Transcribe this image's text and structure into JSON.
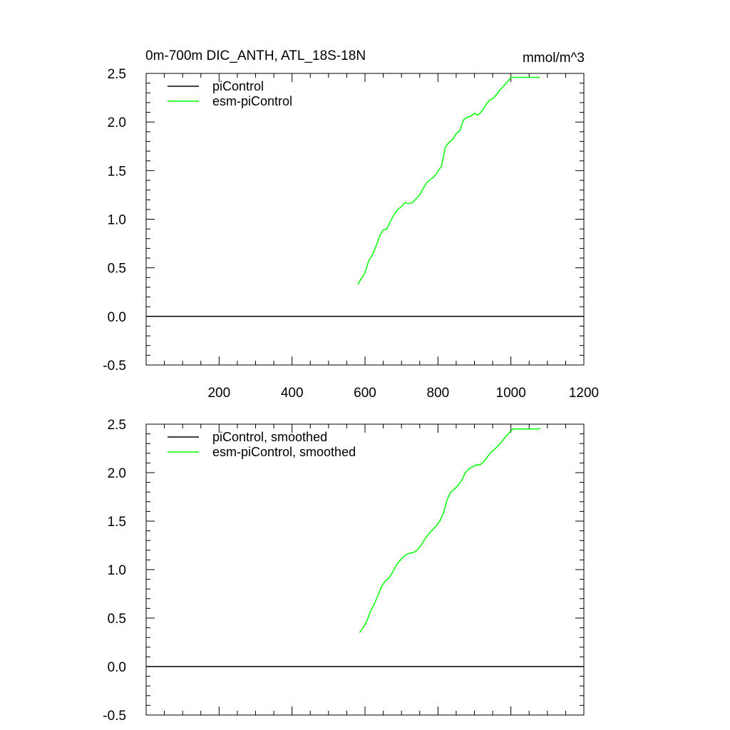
{
  "chart_data": [
    {
      "type": "line",
      "title": "0m-700m DIC_ANTH, ATL_18S-18N",
      "units": "mmol/m^3",
      "xlim": [
        0,
        1200
      ],
      "ylim": [
        -0.5,
        2.5
      ],
      "xticks": [
        200,
        400,
        600,
        800,
        1000,
        1200
      ],
      "xticklabels": [
        "200",
        "400",
        "600",
        "800",
        "1000",
        "1200"
      ],
      "yticks": [
        -0.5,
        0.0,
        0.5,
        1.0,
        1.5,
        2.0,
        2.5
      ],
      "yticklabels": [
        "-0.5",
        "0.0",
        "0.5",
        "1.0",
        "1.5",
        "2.0",
        "2.5"
      ],
      "legend_position": "top-left",
      "series": [
        {
          "name": "piControl",
          "color": "#000000",
          "x": [
            0,
            1200
          ],
          "y": [
            0.0,
            0.0
          ]
        },
        {
          "name": "esm-piControl",
          "color": "#00ff00",
          "x": [
            580,
            590,
            600,
            610,
            620,
            630,
            640,
            650,
            660,
            670,
            680,
            690,
            700,
            710,
            720,
            730,
            740,
            750,
            760,
            770,
            780,
            790,
            800,
            810,
            820,
            830,
            840,
            850,
            860,
            870,
            880,
            890,
            900,
            910,
            920,
            930,
            940,
            950,
            960,
            970,
            980,
            990,
            1000,
            1010,
            1020,
            1030,
            1040,
            1050,
            1060,
            1070,
            1080
          ],
          "y": [
            0.33,
            0.39,
            0.45,
            0.57,
            0.63,
            0.72,
            0.83,
            0.89,
            0.9,
            0.98,
            1.05,
            1.1,
            1.13,
            1.17,
            1.16,
            1.17,
            1.21,
            1.25,
            1.32,
            1.38,
            1.41,
            1.44,
            1.49,
            1.55,
            1.74,
            1.79,
            1.82,
            1.88,
            1.91,
            2.02,
            2.05,
            2.06,
            2.09,
            2.07,
            2.11,
            2.17,
            2.22,
            2.24,
            2.28,
            2.33,
            2.37,
            2.41,
            2.46,
            2.46,
            2.46,
            2.46,
            2.46,
            2.46,
            2.46,
            2.46,
            2.46
          ]
        }
      ]
    },
    {
      "type": "line",
      "title": "",
      "units": "",
      "xlim": [
        0,
        1200
      ],
      "ylim": [
        -0.5,
        2.5
      ],
      "xticks": [
        200,
        400,
        600,
        800,
        1000,
        1200
      ],
      "xticklabels": [],
      "yticks": [
        -0.5,
        0.0,
        0.5,
        1.0,
        1.5,
        2.0,
        2.5
      ],
      "yticklabels": [
        "-0.5",
        "0.0",
        "0.5",
        "1.0",
        "1.5",
        "2.0",
        "2.5"
      ],
      "legend_position": "top-left",
      "series": [
        {
          "name": "piControl, smoothed",
          "color": "#000000",
          "x": [
            0,
            1200
          ],
          "y": [
            0.0,
            0.0
          ]
        },
        {
          "name": "esm-piControl, smoothed",
          "color": "#00ff00",
          "x": [
            585,
            595,
            605,
            615,
            625,
            635,
            645,
            655,
            665,
            675,
            685,
            695,
            705,
            715,
            725,
            735,
            745,
            755,
            765,
            775,
            785,
            795,
            805,
            815,
            825,
            835,
            845,
            855,
            865,
            875,
            885,
            895,
            905,
            915,
            925,
            935,
            945,
            955,
            965,
            975,
            985,
            995,
            1005,
            1015,
            1025,
            1035,
            1045,
            1055,
            1065,
            1075,
            1080
          ],
          "y": [
            0.35,
            0.4,
            0.47,
            0.57,
            0.64,
            0.73,
            0.82,
            0.88,
            0.91,
            0.97,
            1.04,
            1.09,
            1.13,
            1.16,
            1.17,
            1.18,
            1.21,
            1.26,
            1.32,
            1.37,
            1.41,
            1.45,
            1.5,
            1.58,
            1.72,
            1.8,
            1.83,
            1.87,
            1.92,
            2.0,
            2.04,
            2.06,
            2.08,
            2.08,
            2.11,
            2.16,
            2.21,
            2.24,
            2.28,
            2.32,
            2.37,
            2.41,
            2.45,
            2.45,
            2.45,
            2.45,
            2.45,
            2.45,
            2.45,
            2.45,
            2.46
          ]
        }
      ]
    }
  ]
}
